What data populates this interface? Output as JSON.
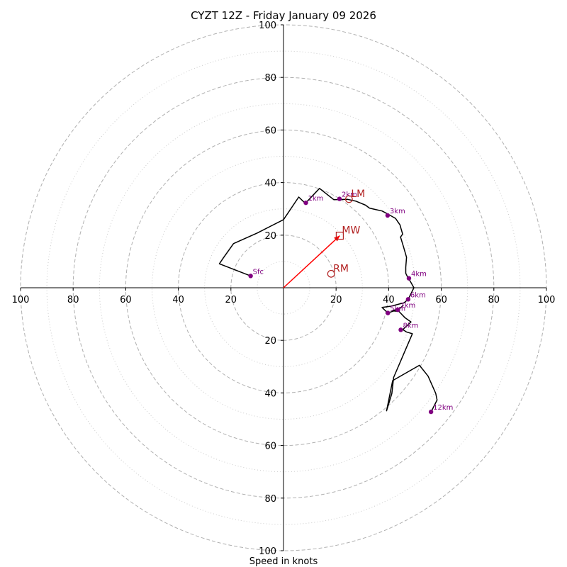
{
  "chart_data": {
    "type": "line",
    "title": "CYZT 12Z - Friday January 09 2026",
    "xlabel": "Speed in knots",
    "axis_range": [
      -100,
      100
    ],
    "ring_major": [
      20,
      40,
      60,
      80,
      100
    ],
    "ring_minor": [
      10,
      30,
      50,
      70,
      90
    ],
    "tick_labels": {
      "left": [
        "100",
        "80",
        "60",
        "40",
        "20"
      ],
      "right": [
        "20",
        "40",
        "60",
        "80",
        "100"
      ],
      "top": [
        "20",
        "40",
        "60",
        "80",
        "100"
      ],
      "bottom": [
        "20",
        "40",
        "60",
        "80",
        "100"
      ]
    },
    "tick_values": [
      20,
      40,
      60,
      80,
      100
    ],
    "hodograph": {
      "color": "#000000",
      "points": [
        [
          -12.5,
          4.5
        ],
        [
          -24.4,
          9.1
        ],
        [
          -22.9,
          11.3
        ],
        [
          -19,
          16.8
        ],
        [
          -10,
          20.8
        ],
        [
          0,
          25.9
        ],
        [
          5.8,
          34.5
        ],
        [
          8.3,
          32.1
        ],
        [
          13.7,
          37.8
        ],
        [
          19.1,
          33.5
        ],
        [
          24.4,
          33.6
        ],
        [
          27.6,
          32.9
        ],
        [
          31.2,
          31.4
        ],
        [
          32.7,
          30.3
        ],
        [
          34.7,
          29.8
        ],
        [
          37.5,
          29.2
        ],
        [
          40.1,
          27.8
        ],
        [
          42.6,
          26.4
        ],
        [
          44.3,
          23.9
        ],
        [
          44.7,
          22.5
        ],
        [
          45.3,
          20.4
        ],
        [
          44.5,
          19.3
        ],
        [
          45.6,
          15.7
        ],
        [
          46.8,
          11.6
        ],
        [
          46.5,
          7.8
        ],
        [
          46.5,
          5.5
        ],
        [
          47.4,
          3.6
        ],
        [
          48.2,
          2.5
        ],
        [
          49.6,
          0
        ],
        [
          47.4,
          -4.4
        ],
        [
          45.9,
          -5.7
        ],
        [
          40.9,
          -7
        ],
        [
          37.5,
          -7.5
        ],
        [
          38.5,
          -8.5
        ],
        [
          39.7,
          -9.6
        ],
        [
          42.3,
          -8.7
        ],
        [
          43.5,
          -8.4
        ],
        [
          45.5,
          -6.8
        ],
        [
          44.5,
          -7.7
        ],
        [
          41.3,
          -8.8
        ],
        [
          43.9,
          -9
        ],
        [
          46.2,
          -11.4
        ],
        [
          48.5,
          -13
        ],
        [
          45.4,
          -15.9
        ],
        [
          46.7,
          -16.8
        ],
        [
          49,
          -17.5
        ],
        [
          41.9,
          -34.1
        ],
        [
          41.2,
          -40.2
        ],
        [
          39.2,
          -46.8
        ],
        [
          40.1,
          -42.3
        ],
        [
          41.5,
          -35.3
        ],
        [
          51.7,
          -29.5
        ],
        [
          55,
          -33.6
        ],
        [
          57.9,
          -40.2
        ],
        [
          58.4,
          -42.7
        ],
        [
          56.9,
          -45.7
        ],
        [
          56.1,
          -47.2
        ]
      ]
    },
    "height_markers": [
      {
        "label": "Sfc",
        "u": -12.5,
        "v": 4.5
      },
      {
        "label": "1km",
        "u": 8.5,
        "v": 32.3
      },
      {
        "label": "2km",
        "u": 21.3,
        "v": 33.8
      },
      {
        "label": "3km",
        "u": 39.6,
        "v": 27.5
      },
      {
        "label": "4km",
        "u": 47.7,
        "v": 3.6
      },
      {
        "label": "5km",
        "u": 39.7,
        "v": -9.6
      },
      {
        "label": "6km",
        "u": 47.4,
        "v": -4.4
      },
      {
        "label": "7km",
        "u": 43.5,
        "v": -8.4
      },
      {
        "label": "8km",
        "u": 44.6,
        "v": -16
      },
      {
        "label": "12km",
        "u": 56.1,
        "v": -47.2
      }
    ],
    "storm_motion": [
      {
        "label": "LM",
        "u": 24.9,
        "v": 33.7,
        "shape": "circle"
      },
      {
        "label": "MW",
        "u": 21.4,
        "v": 19.8,
        "shape": "square"
      },
      {
        "label": "RM",
        "u": 18.1,
        "v": 5.3,
        "shape": "circle"
      }
    ],
    "storm_vector": {
      "u": 21.4,
      "v": 19.8,
      "color": "#ff0000"
    },
    "colors": {
      "marker": "#800080",
      "motion": "#b22222",
      "grid": "#b0b0b0",
      "axis": "#000000"
    }
  }
}
